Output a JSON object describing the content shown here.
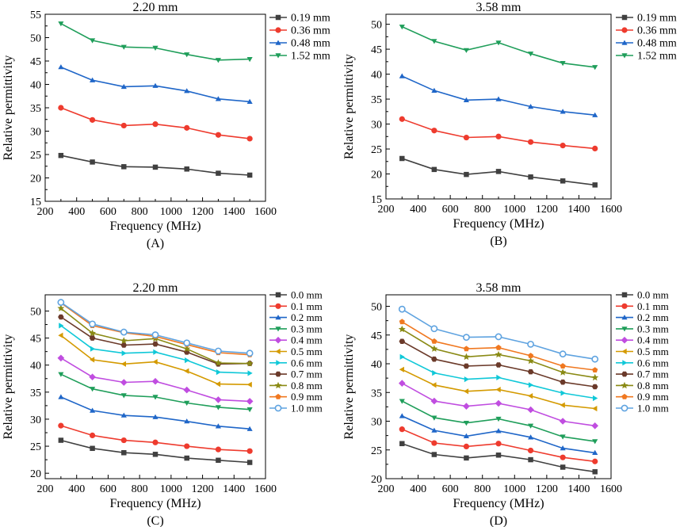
{
  "figure": {
    "colors": {
      "axis": "#000000",
      "series": [
        "#404040",
        "#ee3b2e",
        "#1f66c8",
        "#1f9e5a",
        "#c04de0",
        "#d49a00",
        "#10c8d8",
        "#6b3a2a",
        "#8a8a14",
        "#f07820",
        "#5fa3e0"
      ]
    }
  },
  "chart_data": [
    {
      "type": "line",
      "panel_label": "(A)",
      "title": "2.20 mm",
      "xlabel": "Frequency (MHz)",
      "ylabel": "Relative permittivity",
      "xlim": [
        200,
        1600
      ],
      "ylim": [
        15,
        55
      ],
      "xticks": [
        200,
        400,
        600,
        800,
        1000,
        1200,
        1400,
        1600
      ],
      "yticks": [
        15,
        20,
        25,
        30,
        35,
        40,
        45,
        50,
        55
      ],
      "x": [
        300,
        500,
        700,
        900,
        1100,
        1300,
        1500
      ],
      "legend": "outside-right",
      "series": [
        {
          "name": "0.19 mm",
          "marker": "square",
          "values": [
            24.8,
            23.4,
            22.4,
            22.3,
            21.9,
            21.0,
            20.6
          ]
        },
        {
          "name": "0.36 mm",
          "marker": "circle",
          "values": [
            35.0,
            32.4,
            31.2,
            31.5,
            30.7,
            29.2,
            28.4
          ]
        },
        {
          "name": "0.48 mm",
          "marker": "triangle-up",
          "values": [
            43.7,
            40.9,
            39.5,
            39.7,
            38.6,
            36.9,
            36.3
          ]
        },
        {
          "name": "1.52 mm",
          "marker": "triangle-down",
          "values": [
            53.0,
            49.4,
            48.0,
            47.8,
            46.4,
            45.2,
            45.4
          ]
        }
      ]
    },
    {
      "type": "line",
      "panel_label": "(B)",
      "title": "3.58 mm",
      "xlabel": "Frequency (MHz)",
      "ylabel": "Relative permittivity",
      "xlim": [
        200,
        1600
      ],
      "ylim": [
        15,
        52
      ],
      "xticks": [
        200,
        400,
        600,
        800,
        1000,
        1200,
        1400,
        1600
      ],
      "yticks": [
        15,
        20,
        25,
        30,
        35,
        40,
        45,
        50
      ],
      "x": [
        300,
        500,
        700,
        900,
        1100,
        1300,
        1500
      ],
      "legend": "outside-right",
      "series": [
        {
          "name": "0.19 mm",
          "marker": "square",
          "values": [
            23.1,
            20.9,
            19.9,
            20.5,
            19.4,
            18.6,
            17.8
          ]
        },
        {
          "name": "0.36 mm",
          "marker": "circle",
          "values": [
            31.0,
            28.7,
            27.3,
            27.5,
            26.4,
            25.7,
            25.1
          ]
        },
        {
          "name": "0.48 mm",
          "marker": "triangle-up",
          "values": [
            39.6,
            36.7,
            34.8,
            35.0,
            33.5,
            32.5,
            31.8
          ]
        },
        {
          "name": "1.52 mm",
          "marker": "triangle-down",
          "values": [
            49.5,
            46.6,
            44.8,
            46.3,
            44.1,
            42.2,
            41.4
          ]
        }
      ]
    },
    {
      "type": "line",
      "panel_label": "(C)",
      "title": "2.20 mm",
      "xlabel": "Frequency (MHz)",
      "ylabel": "Relative permittivity",
      "xlim": [
        200,
        1600
      ],
      "ylim": [
        19,
        53
      ],
      "xticks": [
        200,
        400,
        600,
        800,
        1000,
        1200,
        1400,
        1600
      ],
      "yticks": [
        20,
        25,
        30,
        35,
        40,
        45,
        50
      ],
      "x": [
        300,
        500,
        700,
        900,
        1100,
        1300,
        1500
      ],
      "legend": "outside-right",
      "series": [
        {
          "name": "0.0 mm",
          "marker": "square",
          "values": [
            26.1,
            24.6,
            23.8,
            23.5,
            22.8,
            22.4,
            22.0
          ]
        },
        {
          "name": "0.1 mm",
          "marker": "circle",
          "values": [
            28.8,
            27.0,
            26.1,
            25.7,
            25.0,
            24.4,
            24.1
          ]
        },
        {
          "name": "0.2 mm",
          "marker": "triangle-up",
          "values": [
            34.1,
            31.6,
            30.7,
            30.4,
            29.6,
            28.7,
            28.2
          ]
        },
        {
          "name": "0.3 mm",
          "marker": "triangle-down",
          "values": [
            38.3,
            35.6,
            34.4,
            34.1,
            33.0,
            32.2,
            31.8
          ]
        },
        {
          "name": "0.4 mm",
          "marker": "diamond",
          "values": [
            41.3,
            37.8,
            36.8,
            37.0,
            35.4,
            33.6,
            33.3
          ]
        },
        {
          "name": "0.5 mm",
          "marker": "triangle-left",
          "values": [
            45.5,
            41.0,
            40.2,
            40.6,
            38.9,
            36.5,
            36.4
          ]
        },
        {
          "name": "0.6 mm",
          "marker": "triangle-right",
          "values": [
            47.3,
            43.0,
            42.2,
            42.4,
            40.9,
            38.7,
            38.5
          ]
        },
        {
          "name": "0.7 mm",
          "marker": "hexagon",
          "values": [
            48.9,
            45.0,
            43.7,
            43.9,
            42.4,
            40.2,
            40.3
          ]
        },
        {
          "name": "0.8 mm",
          "marker": "star",
          "values": [
            50.5,
            45.9,
            44.5,
            44.9,
            43.0,
            40.4,
            40.3
          ]
        },
        {
          "name": "0.9 mm",
          "marker": "pentagon",
          "values": [
            51.5,
            47.3,
            46.0,
            45.3,
            43.8,
            42.3,
            41.9
          ]
        },
        {
          "name": "1.0 mm",
          "marker": "circle-open",
          "values": [
            51.6,
            47.6,
            46.1,
            45.6,
            44.1,
            42.6,
            42.2
          ]
        }
      ]
    },
    {
      "type": "line",
      "panel_label": "(D)",
      "title": "3.58 mm",
      "xlabel": "Frequency (MHz)",
      "ylabel": "Relative permittivity",
      "xlim": [
        200,
        1600
      ],
      "ylim": [
        20,
        52
      ],
      "xticks": [
        200,
        400,
        600,
        800,
        1000,
        1200,
        1400,
        1600
      ],
      "yticks": [
        20,
        25,
        30,
        35,
        40,
        45,
        50
      ],
      "x": [
        300,
        500,
        700,
        900,
        1100,
        1300,
        1500
      ],
      "legend": "outside-right",
      "series": [
        {
          "name": "0.0 mm",
          "marker": "square",
          "values": [
            26.1,
            24.2,
            23.6,
            24.1,
            23.3,
            22.0,
            21.2
          ]
        },
        {
          "name": "0.1 mm",
          "marker": "circle",
          "values": [
            28.6,
            26.2,
            25.6,
            26.1,
            24.9,
            23.7,
            23.0
          ]
        },
        {
          "name": "0.2 mm",
          "marker": "triangle-up",
          "values": [
            30.9,
            28.4,
            27.4,
            28.3,
            27.2,
            25.3,
            24.5
          ]
        },
        {
          "name": "0.3 mm",
          "marker": "triangle-down",
          "values": [
            33.5,
            30.6,
            29.7,
            30.4,
            29.2,
            27.3,
            26.5
          ]
        },
        {
          "name": "0.4 mm",
          "marker": "diamond",
          "values": [
            36.6,
            33.5,
            32.6,
            33.1,
            32.0,
            30.0,
            29.2
          ]
        },
        {
          "name": "0.5 mm",
          "marker": "triangle-left",
          "values": [
            39.0,
            36.3,
            35.2,
            35.5,
            34.4,
            32.8,
            32.2
          ]
        },
        {
          "name": "0.6 mm",
          "marker": "triangle-right",
          "values": [
            41.2,
            38.4,
            37.3,
            37.6,
            36.3,
            34.9,
            34.0
          ]
        },
        {
          "name": "0.7 mm",
          "marker": "hexagon",
          "values": [
            43.9,
            40.8,
            39.6,
            39.8,
            38.6,
            36.8,
            36.0
          ]
        },
        {
          "name": "0.8 mm",
          "marker": "star",
          "values": [
            46.0,
            42.6,
            41.2,
            41.6,
            40.5,
            38.5,
            37.6
          ]
        },
        {
          "name": "0.9 mm",
          "marker": "pentagon",
          "values": [
            47.3,
            43.9,
            42.6,
            42.8,
            41.4,
            39.6,
            38.9
          ]
        },
        {
          "name": "1.0 mm",
          "marker": "circle-open",
          "values": [
            49.5,
            46.1,
            44.6,
            44.7,
            43.4,
            41.7,
            40.8
          ]
        }
      ]
    }
  ]
}
